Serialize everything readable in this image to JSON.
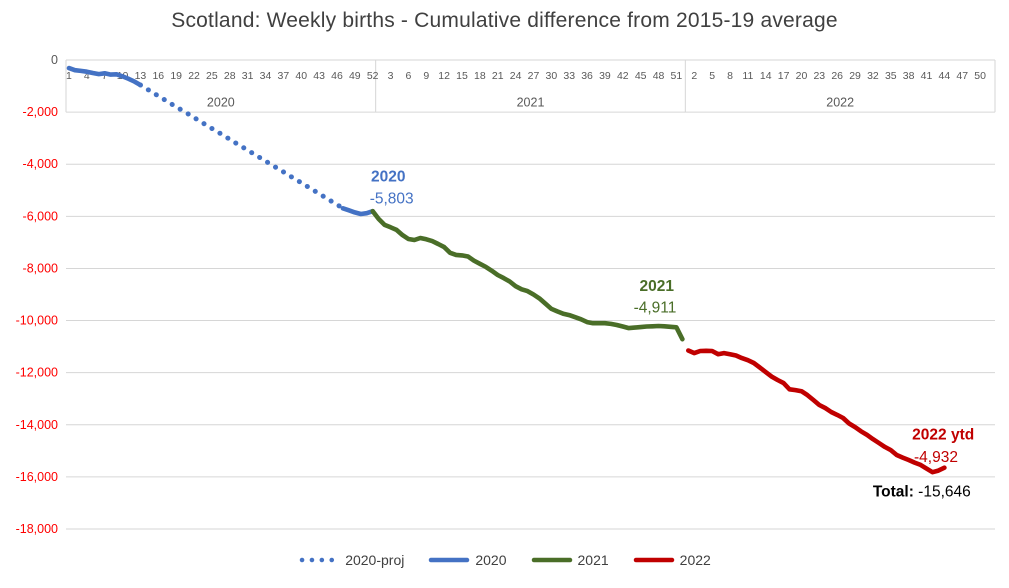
{
  "title": "Scotland: Weekly births - Cumulative difference from 2015-19 average",
  "chart_data": {
    "type": "line",
    "title": "Scotland: Weekly births - Cumulative difference from 2015-19 average",
    "y_axis": {
      "min": -18000,
      "max": 0,
      "tick_step": 2000,
      "tick_labels": [
        "0",
        "-2,000",
        "-4,000",
        "-6,000",
        "-8,000",
        "-10,000",
        "-12,000",
        "-14,000",
        "-16,000",
        "-18,000"
      ],
      "zero_label_color": "#595959",
      "negative_label_color": "#ff0000",
      "grid": true
    },
    "x_axis": {
      "unit": "week",
      "weeks_per_year": 52,
      "total_weeks": 156,
      "label_interval": 3,
      "sections": [
        {
          "year": "2020",
          "tick_labels": [
            "1",
            "4",
            "7",
            "10",
            "13",
            "16",
            "19",
            "22",
            "25",
            "28",
            "31",
            "34",
            "37",
            "40",
            "43",
            "46",
            "49",
            "52"
          ]
        },
        {
          "year": "2021",
          "tick_labels": [
            "3",
            "6",
            "9",
            "12",
            "15",
            "18",
            "21",
            "24",
            "27",
            "30",
            "33",
            "36",
            "39",
            "42",
            "45",
            "48",
            "51"
          ]
        },
        {
          "year": "2022",
          "tick_labels": [
            "2",
            "5",
            "8",
            "11",
            "14",
            "17",
            "20",
            "23",
            "26",
            "29",
            "32",
            "35",
            "38",
            "41",
            "44",
            "47",
            "50"
          ]
        }
      ]
    },
    "series": [
      {
        "id": "2020-actual-early",
        "name": "2020",
        "style": "solid",
        "color": "#4472c4",
        "start_week": 1,
        "values": [
          -310,
          -390,
          -420,
          -450,
          -500,
          -540,
          -510,
          -560,
          -550,
          -630,
          -720,
          -830,
          -960
        ]
      },
      {
        "id": "2020-proj",
        "name": "2020-proj",
        "style": "dotted",
        "color": "#4472c4",
        "start_week": 13,
        "values": [
          -960,
          -1100,
          -1240,
          -1380,
          -1520,
          -1660,
          -1795,
          -1935,
          -2070,
          -2210,
          -2350,
          -2490,
          -2630,
          -2765,
          -2905,
          -3045,
          -3185,
          -3320,
          -3460,
          -3600,
          -3740,
          -3880,
          -4020,
          -4155,
          -4295,
          -4435,
          -4575,
          -4710,
          -4850,
          -4990,
          -5130,
          -5270,
          -5410,
          -5550,
          -5690
        ]
      },
      {
        "id": "2020-actual-yearend",
        "name": "2020",
        "style": "solid",
        "color": "#4472c4",
        "start_week": 47,
        "values": [
          -5690,
          -5770,
          -5850,
          -5910,
          -5880,
          -5803
        ]
      },
      {
        "id": "2021",
        "name": "2021",
        "style": "solid",
        "color": "#4a6e28",
        "start_week": 52,
        "values": [
          -5803,
          -6100,
          -6330,
          -6420,
          -6520,
          -6720,
          -6870,
          -6910,
          -6830,
          -6880,
          -6950,
          -7060,
          -7180,
          -7400,
          -7480,
          -7500,
          -7540,
          -7700,
          -7820,
          -7940,
          -8090,
          -8250,
          -8370,
          -8500,
          -8680,
          -8800,
          -8870,
          -9000,
          -9150,
          -9350,
          -9550,
          -9650,
          -9740,
          -9790,
          -9870,
          -9950,
          -10060,
          -10100,
          -10100,
          -10100,
          -10130,
          -10170,
          -10230,
          -10290,
          -10270,
          -10250,
          -10230,
          -10220,
          -10210,
          -10220,
          -10240,
          -10260,
          -10714
        ]
      },
      {
        "id": "2022",
        "name": "2022",
        "style": "solid",
        "color": "#c00000",
        "start_week": 105,
        "values": [
          -11150,
          -11250,
          -11170,
          -11160,
          -11170,
          -11290,
          -11250,
          -11290,
          -11340,
          -11440,
          -11520,
          -11630,
          -11800,
          -11980,
          -12150,
          -12280,
          -12400,
          -12640,
          -12670,
          -12710,
          -12860,
          -13050,
          -13240,
          -13360,
          -13510,
          -13620,
          -13740,
          -13950,
          -14090,
          -14250,
          -14390,
          -14550,
          -14700,
          -14850,
          -14970,
          -15160,
          -15260,
          -15350,
          -15450,
          -15540,
          -15680,
          -15820,
          -15760,
          -15646
        ]
      }
    ],
    "annotations": [
      {
        "bold": "2020",
        "regular": "",
        "color": "#4472c4",
        "week": 54.6,
        "value": -4480
      },
      {
        "bold": "",
        "regular": "-5,803",
        "color": "#4472c4",
        "week": 55.2,
        "value": -5320
      },
      {
        "bold": "2021",
        "regular": "",
        "color": "#4a6e28",
        "week": 99.7,
        "value": -8670
      },
      {
        "bold": "",
        "regular": "-4,911",
        "color": "#4a6e28",
        "week": 99.4,
        "value": -9500
      },
      {
        "bold": "2022 ytd",
        "regular": "",
        "color": "#c00000",
        "week": 147.8,
        "value": -14380
      },
      {
        "bold": "",
        "regular": "-4,932",
        "color": "#c00000",
        "week": 146.6,
        "value": -15230
      },
      {
        "bold": "Total:",
        "regular": " -15,646",
        "color": "#000000",
        "week": 144.2,
        "value": -16560
      }
    ]
  },
  "legend": {
    "items": [
      {
        "label": "2020-proj",
        "color": "#4472c4",
        "style": "dotted"
      },
      {
        "label": "2020",
        "color": "#4472c4",
        "style": "solid"
      },
      {
        "label": "2021",
        "color": "#4a6e28",
        "style": "solid"
      },
      {
        "label": "2022",
        "color": "#c00000",
        "style": "solid"
      }
    ]
  },
  "colors": {
    "blue": "#4472c4",
    "green": "#4a6e28",
    "red": "#c00000",
    "axis_label_red": "#ff0000",
    "text_gray": "#595959",
    "title_gray": "#404040",
    "grid_gray": "#d6d6d6"
  }
}
